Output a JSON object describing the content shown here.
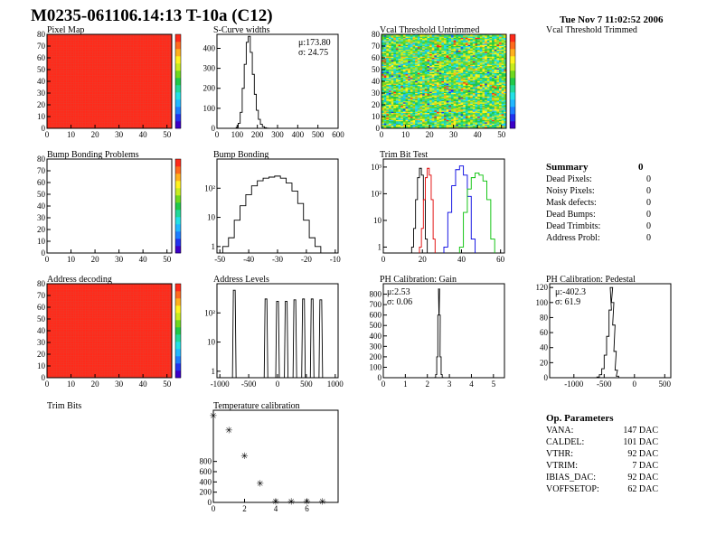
{
  "header": {
    "title": "M0235-061106.14:13 T-10a (C12)",
    "date": "Tue Nov  7 11:02:52 2006"
  },
  "panels": {
    "pixel_map": "Pixel Map",
    "scurve": "S-Curve widths",
    "vcal_untrimmed": "Vcal Threshold Untrimmed",
    "vcal_trimmed": "Vcal Threshold Trimmed",
    "bump_problems": "Bump Bonding Problems",
    "bump_bonding": "Bump Bonding",
    "trim_bit_test": "Trim Bit Test",
    "address_decoding": "Address decoding",
    "address_levels": "Address Levels",
    "ph_gain": "PH Calibration: Gain",
    "ph_pedestal": "PH Calibration: Pedestal",
    "trim_bits": "Trim Bits",
    "temperature": "Temperature calibration"
  },
  "stats": {
    "scurve_mu": "μ:173.80",
    "scurve_sigma": "σ: 24.75",
    "gain_mu": "μ:2.53",
    "gain_sigma": "σ: 0.06",
    "ped_mu": "μ:-402.3",
    "ped_sigma": "σ: 61.9"
  },
  "summary": {
    "title": "Summary",
    "total": "0",
    "rows": [
      {
        "label": "Dead Pixels:",
        "value": "0"
      },
      {
        "label": "Noisy Pixels:",
        "value": "0"
      },
      {
        "label": "Mask defects:",
        "value": "0"
      },
      {
        "label": "Dead Bumps:",
        "value": "0"
      },
      {
        "label": "Dead Trimbits:",
        "value": "0"
      },
      {
        "label": "Address Probl:",
        "value": "0"
      }
    ]
  },
  "op_params": {
    "title": "Op. Parameters",
    "rows": [
      {
        "label": "VANA:",
        "value": "147 DAC"
      },
      {
        "label": "CALDEL:",
        "value": "101 DAC"
      },
      {
        "label": "VTHR:",
        "value": "92 DAC"
      },
      {
        "label": "VTRIM:",
        "value": "7 DAC"
      },
      {
        "label": "IBIAS_DAC:",
        "value": "92 DAC"
      },
      {
        "label": "VOFFSETOP:",
        "value": "62 DAC"
      }
    ]
  },
  "chart_data": [
    {
      "id": "pixel_map",
      "type": "heatmap",
      "title": "Pixel Map",
      "x_ticks": [
        "0",
        "10",
        "20",
        "30",
        "40",
        "50"
      ],
      "y_ticks": [
        "0",
        "10",
        "20",
        "30",
        "40",
        "50",
        "60",
        "70",
        "80"
      ],
      "xlim": [
        0,
        52
      ],
      "ylim": [
        0,
        80
      ],
      "fill": "uniform-max",
      "fill_color": "#ff2a1a"
    },
    {
      "id": "scurve",
      "type": "line",
      "title": "S-Curve widths",
      "x_ticks": [
        "0",
        "100",
        "200",
        "300",
        "400",
        "500",
        "600"
      ],
      "y_ticks": [
        "0",
        "100",
        "200",
        "300",
        "400"
      ],
      "xlim": [
        0,
        600
      ],
      "ylim": [
        0,
        470
      ],
      "x": [
        100,
        110,
        120,
        130,
        140,
        150,
        160,
        170,
        180,
        190,
        200,
        210,
        220,
        230,
        240,
        250,
        260
      ],
      "values": [
        5,
        25,
        80,
        200,
        320,
        430,
        460,
        380,
        270,
        170,
        90,
        45,
        20,
        8,
        3,
        1,
        0
      ]
    },
    {
      "id": "vcal_untrimmed",
      "type": "heatmap",
      "title": "Vcal Threshold Untrimmed",
      "x_ticks": [
        "0",
        "10",
        "20",
        "30",
        "40",
        "50"
      ],
      "y_ticks": [
        "0",
        "10",
        "20",
        "30",
        "40",
        "50",
        "60",
        "70",
        "80"
      ],
      "xlim": [
        0,
        52
      ],
      "ylim": [
        0,
        80
      ],
      "fill": "random-mid"
    },
    {
      "id": "bump_problems",
      "type": "heatmap",
      "title": "Bump Bonding Problems",
      "x_ticks": [
        "0",
        "10",
        "20",
        "30",
        "40",
        "50"
      ],
      "y_ticks": [
        "0",
        "10",
        "20",
        "30",
        "40",
        "50",
        "60",
        "70",
        "80"
      ],
      "xlim": [
        0,
        52
      ],
      "ylim": [
        0,
        80
      ],
      "fill": "empty"
    },
    {
      "id": "bump_bonding",
      "type": "line",
      "title": "Bump Bonding",
      "log": true,
      "x_ticks": [
        "-50",
        "-40",
        "-30",
        "-20",
        "-10"
      ],
      "y_ticks": [
        "1",
        "10",
        "10²"
      ],
      "xlim": [
        -51,
        -9
      ],
      "ylim": [
        0.6,
        1000
      ],
      "x": [
        -48,
        -46,
        -44,
        -42,
        -40,
        -38,
        -36,
        -34,
        -32,
        -30,
        -28,
        -26,
        -24,
        -22,
        -20,
        -18,
        -16
      ],
      "values": [
        1,
        2,
        8,
        25,
        60,
        120,
        180,
        220,
        240,
        260,
        220,
        150,
        80,
        30,
        8,
        2,
        1
      ]
    },
    {
      "id": "trim_bit_test",
      "type": "line",
      "title": "Trim Bit Test",
      "log": true,
      "x_ticks": [
        "0",
        "20",
        "40",
        "60"
      ],
      "y_ticks": [
        "1",
        "10",
        "10²",
        "10³"
      ],
      "xlim": [
        0,
        62
      ],
      "ylim": [
        0.6,
        2000
      ],
      "series": [
        {
          "name": "trim0",
          "color": "#000000",
          "x": [
            15,
            16,
            17,
            18,
            19,
            20,
            21,
            22
          ],
          "values": [
            1,
            5,
            60,
            400,
            900,
            500,
            60,
            2
          ]
        },
        {
          "name": "trim1",
          "color": "#e00000",
          "x": [
            19,
            20,
            21,
            22,
            23,
            24,
            25,
            26
          ],
          "values": [
            1,
            5,
            60,
            400,
            900,
            500,
            60,
            2
          ]
        },
        {
          "name": "trim2",
          "color": "#0000e0",
          "x": [
            32,
            34,
            36,
            38,
            40,
            42,
            44,
            46
          ],
          "values": [
            1,
            20,
            200,
            800,
            1100,
            500,
            80,
            2
          ]
        },
        {
          "name": "trim3",
          "color": "#00c000",
          "x": [
            40,
            42,
            44,
            46,
            48,
            50,
            52,
            54,
            56
          ],
          "values": [
            1,
            20,
            150,
            400,
            600,
            500,
            300,
            60,
            2
          ]
        }
      ]
    },
    {
      "id": "address_decoding",
      "type": "heatmap",
      "title": "Address decoding",
      "x_ticks": [
        "0",
        "10",
        "20",
        "30",
        "40",
        "50"
      ],
      "y_ticks": [
        "0",
        "10",
        "20",
        "30",
        "40",
        "50",
        "60",
        "70",
        "80"
      ],
      "xlim": [
        0,
        52
      ],
      "ylim": [
        0,
        80
      ],
      "fill": "uniform-max",
      "fill_color": "#ff2a1a"
    },
    {
      "id": "address_levels",
      "type": "line",
      "title": "Address Levels",
      "log": true,
      "x_ticks": [
        "-1000",
        "-500",
        "0",
        "500",
        "1000"
      ],
      "y_ticks": [
        "1",
        "10",
        "10²"
      ],
      "xlim": [
        -1050,
        1050
      ],
      "ylim": [
        0.6,
        1000
      ],
      "peaks": [
        -750,
        -200,
        0,
        150,
        300,
        450,
        600,
        750
      ],
      "peak_heights": [
        600,
        300,
        250,
        250,
        280,
        300,
        300,
        280
      ]
    },
    {
      "id": "ph_gain",
      "type": "line",
      "title": "PH Calibration: Gain",
      "x_ticks": [
        "0",
        "1",
        "2",
        "3",
        "4",
        "5"
      ],
      "y_ticks": [
        "0",
        "100",
        "200",
        "300",
        "400",
        "500",
        "600",
        "700",
        "800"
      ],
      "xlim": [
        0,
        5.5
      ],
      "ylim": [
        0,
        900
      ],
      "x": [
        2.35,
        2.4,
        2.45,
        2.5,
        2.53,
        2.56,
        2.6,
        2.65,
        2.7
      ],
      "values": [
        2,
        30,
        200,
        600,
        850,
        600,
        200,
        30,
        2
      ]
    },
    {
      "id": "ph_pedestal",
      "type": "line",
      "title": "PH Calibration: Pedestal",
      "x_ticks": [
        "-1000",
        "-500",
        "0",
        "500"
      ],
      "y_ticks": [
        "0",
        "20",
        "40",
        "60",
        "80",
        "100",
        "120"
      ],
      "xlim": [
        -1400,
        600
      ],
      "ylim": [
        0,
        125
      ],
      "x": [
        -600,
        -560,
        -520,
        -480,
        -440,
        -400,
        -380,
        -360,
        -340,
        -320,
        -300,
        -280
      ],
      "values": [
        1,
        4,
        12,
        30,
        55,
        90,
        120,
        100,
        70,
        35,
        10,
        2
      ]
    },
    {
      "id": "temperature",
      "type": "scatter",
      "title": "Temperature calibration",
      "x_ticks": [
        "0",
        "2",
        "4",
        "6"
      ],
      "y_ticks": [
        "0",
        "200",
        "400",
        "600",
        "800"
      ],
      "xlim": [
        0,
        8
      ],
      "ylim": [
        0,
        1800
      ],
      "x": [
        0,
        1,
        2,
        3,
        4,
        5,
        6,
        7
      ],
      "values": [
        1700,
        1420,
        920,
        380,
        30,
        30,
        30,
        30
      ]
    }
  ]
}
